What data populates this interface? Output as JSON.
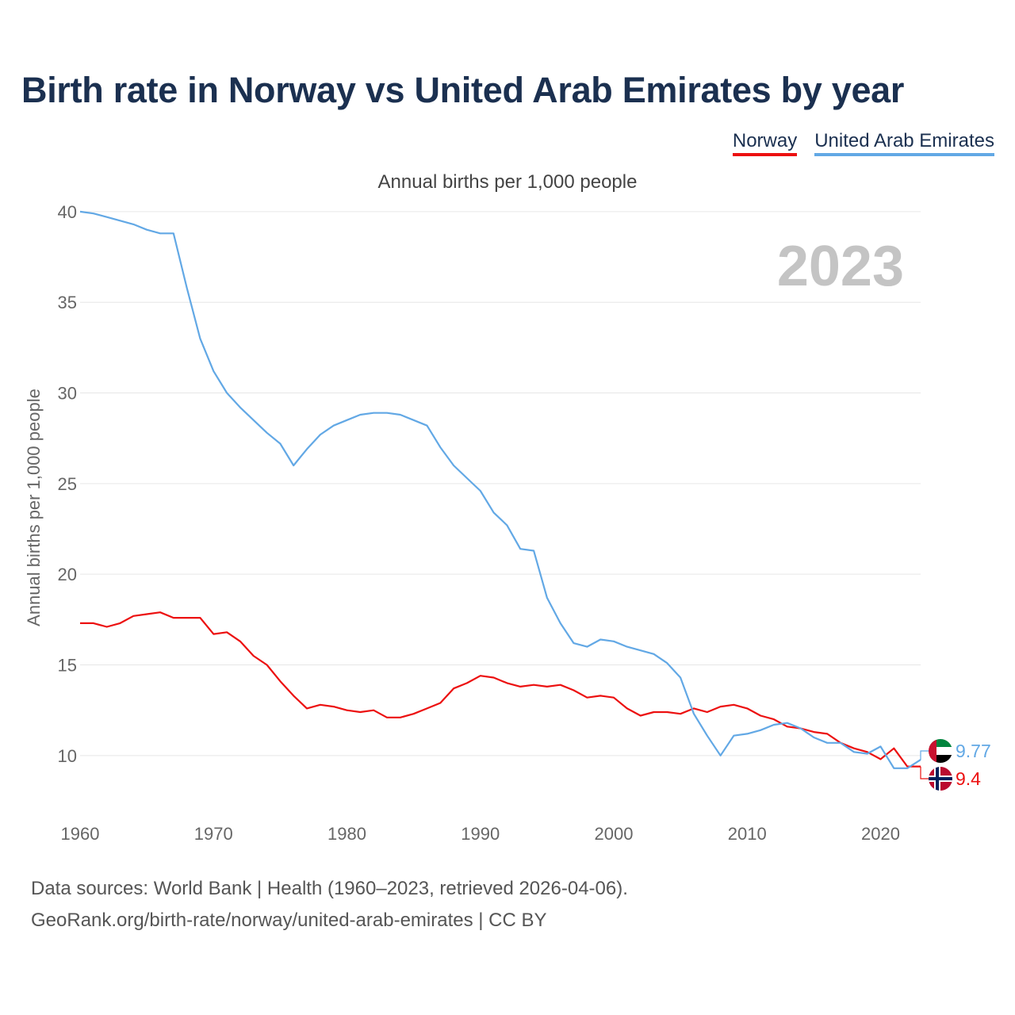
{
  "title": "Birth rate in Norway vs United Arab Emirates by year",
  "legend": {
    "norway": "Norway",
    "uae": "United Arab Emirates"
  },
  "subtitle": "Annual births per 1,000 people",
  "year_watermark": "2023",
  "footer": {
    "line1": "Data sources: World Bank | Health (1960–2023, retrieved 2026-04-06).",
    "line2": "GeoRank.org/birth-rate/norway/united-arab-emirates | CC BY"
  },
  "colors": {
    "norway": "#ec1010",
    "uae": "#62a8e5",
    "title": "#1b3050",
    "grid": "#e6e6e6",
    "watermark": "#c4c4c4"
  },
  "chart_data": {
    "type": "line",
    "title": "Birth rate in Norway vs United Arab Emirates by year",
    "xlabel": "",
    "ylabel": "Annual births per 1,000 people",
    "xlim": [
      1960,
      2023
    ],
    "ylim": [
      7.5,
      41
    ],
    "x_ticks": [
      1960,
      1970,
      1980,
      1990,
      2000,
      2010,
      2020
    ],
    "y_ticks": [
      10,
      15,
      20,
      25,
      30,
      35,
      40
    ],
    "grid": true,
    "x": [
      1960,
      1961,
      1962,
      1963,
      1964,
      1965,
      1966,
      1967,
      1968,
      1969,
      1970,
      1971,
      1972,
      1973,
      1974,
      1975,
      1976,
      1977,
      1978,
      1979,
      1980,
      1981,
      1982,
      1983,
      1984,
      1985,
      1986,
      1987,
      1988,
      1989,
      1990,
      1991,
      1992,
      1993,
      1994,
      1995,
      1996,
      1997,
      1998,
      1999,
      2000,
      2001,
      2002,
      2003,
      2004,
      2005,
      2006,
      2007,
      2008,
      2009,
      2010,
      2011,
      2012,
      2013,
      2014,
      2015,
      2016,
      2017,
      2018,
      2019,
      2020,
      2021,
      2022,
      2023
    ],
    "series": [
      {
        "name": "Norway",
        "end_label": "9.4",
        "values": [
          17.3,
          17.3,
          17.1,
          17.3,
          17.7,
          17.8,
          17.9,
          17.6,
          17.6,
          17.6,
          16.7,
          16.8,
          16.3,
          15.5,
          15.0,
          14.1,
          13.3,
          12.6,
          12.8,
          12.7,
          12.5,
          12.4,
          12.5,
          12.1,
          12.1,
          12.3,
          12.6,
          12.9,
          13.7,
          14.0,
          14.4,
          14.3,
          14.0,
          13.8,
          13.9,
          13.8,
          13.9,
          13.6,
          13.2,
          13.3,
          13.2,
          12.6,
          12.2,
          12.4,
          12.4,
          12.3,
          12.6,
          12.4,
          12.7,
          12.8,
          12.6,
          12.2,
          12.0,
          11.6,
          11.5,
          11.3,
          11.2,
          10.7,
          10.4,
          10.2,
          9.8,
          10.4,
          9.4,
          9.4
        ]
      },
      {
        "name": "United Arab Emirates",
        "end_label": "9.77",
        "values": [
          40.0,
          39.9,
          39.7,
          39.5,
          39.3,
          39.0,
          38.8,
          38.8,
          35.8,
          33.0,
          31.2,
          30.0,
          29.2,
          28.5,
          27.8,
          27.2,
          26.0,
          26.9,
          27.7,
          28.2,
          28.5,
          28.8,
          28.9,
          28.9,
          28.8,
          28.5,
          28.2,
          27.0,
          26.0,
          25.3,
          24.6,
          23.4,
          22.7,
          21.4,
          21.3,
          18.7,
          17.3,
          16.2,
          16.0,
          16.4,
          16.3,
          16.0,
          15.8,
          15.6,
          15.1,
          14.3,
          12.3,
          11.1,
          10.0,
          11.1,
          11.2,
          11.4,
          11.7,
          11.8,
          11.5,
          11.0,
          10.7,
          10.7,
          10.2,
          10.1,
          10.5,
          9.3,
          9.3,
          9.77
        ]
      }
    ]
  }
}
